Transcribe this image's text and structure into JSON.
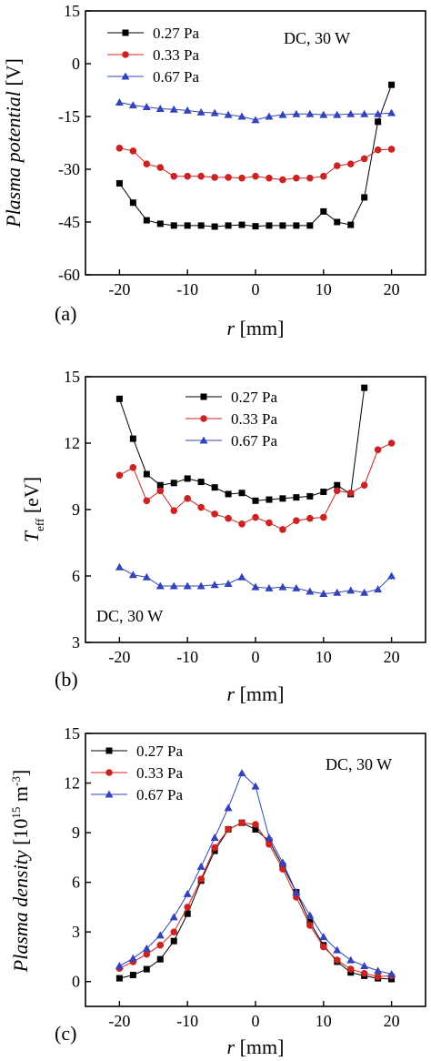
{
  "colors": {
    "s027": "#000000",
    "s033": "#cc2222",
    "s067": "#3344bb",
    "line": "#444444"
  },
  "chart_data": [
    {
      "type": "line",
      "panel_label": "(a)",
      "annotation": "DC, 30 W",
      "annotation_pos": "top-right",
      "ylabel": "Plasma potential [V]",
      "xlabel_var": "r",
      "xlabel_unit": " [mm]",
      "xlim": [
        -25,
        25
      ],
      "ylim": [
        -60,
        15
      ],
      "xticks": [
        -20,
        -10,
        0,
        10,
        20
      ],
      "xtick_labels": [
        "-20",
        "-10",
        "0",
        "10",
        "20"
      ],
      "yticks": [
        -60,
        -45,
        -30,
        -15,
        0,
        15
      ],
      "ytick_labels": [
        "-60",
        "-45",
        "-30",
        "-15",
        "0",
        "15"
      ],
      "legend_pos": "top-left",
      "series": [
        {
          "name": "0.27 Pa",
          "marker": "square",
          "color_key": "s027",
          "x": [
            -20,
            -18,
            -16,
            -14,
            -12,
            -10,
            -8,
            -6,
            -4,
            -2,
            0,
            2,
            4,
            6,
            8,
            10,
            12,
            14,
            16,
            18,
            20
          ],
          "y": [
            -34,
            -39.5,
            -44.5,
            -45.5,
            -46,
            -46,
            -46,
            -46.3,
            -46,
            -45.8,
            -46.2,
            -46,
            -46,
            -46,
            -46,
            -42,
            -45,
            -45.8,
            -38,
            -16.5,
            -6
          ]
        },
        {
          "name": "0.33 Pa",
          "marker": "circle",
          "color_key": "s033",
          "x": [
            -20,
            -18,
            -16,
            -14,
            -12,
            -10,
            -8,
            -6,
            -4,
            -2,
            0,
            2,
            4,
            6,
            8,
            10,
            12,
            14,
            16,
            18,
            20
          ],
          "y": [
            -24,
            -24.8,
            -28.5,
            -29.5,
            -32,
            -32,
            -32,
            -32.3,
            -32.3,
            -32.5,
            -32,
            -32.5,
            -33,
            -32.5,
            -32.5,
            -32,
            -29,
            -28.5,
            -27,
            -24.5,
            -24.3
          ]
        },
        {
          "name": "0.67 Pa",
          "marker": "triangle",
          "color_key": "s067",
          "x": [
            -20,
            -18,
            -16,
            -14,
            -12,
            -10,
            -8,
            -6,
            -4,
            -2,
            0,
            2,
            4,
            6,
            8,
            10,
            12,
            14,
            16,
            18,
            20
          ],
          "y": [
            -11,
            -11.8,
            -12.3,
            -12.8,
            -13,
            -13.3,
            -13.8,
            -14,
            -14.5,
            -15,
            -16,
            -15,
            -14.5,
            -14.3,
            -14.3,
            -14.5,
            -14.5,
            -14.3,
            -14.3,
            -14.3,
            -14
          ]
        }
      ]
    },
    {
      "type": "line",
      "panel_label": "(b)",
      "annotation": "DC, 30 W",
      "annotation_pos": "bottom-left",
      "ylabel_main": "T",
      "ylabel_sub": "eff",
      "ylabel_unit": " [eV]",
      "xlabel_var": "r",
      "xlabel_unit": " [mm]",
      "xlim": [
        -25,
        25
      ],
      "ylim": [
        3,
        15
      ],
      "xticks": [
        -20,
        -10,
        0,
        10,
        20
      ],
      "xtick_labels": [
        "-20",
        "-10",
        "0",
        "10",
        "20"
      ],
      "yticks": [
        3,
        6,
        9,
        12,
        15
      ],
      "ytick_labels": [
        "3",
        "6",
        "9",
        "12",
        "15"
      ],
      "legend_pos": "top-center",
      "series": [
        {
          "name": "0.27 Pa",
          "marker": "square",
          "color_key": "s027",
          "x": [
            -20,
            -18,
            -16,
            -14,
            -12,
            -10,
            -8,
            -6,
            -4,
            -2,
            0,
            2,
            4,
            6,
            8,
            10,
            12,
            14,
            16
          ],
          "y": [
            14,
            12.2,
            10.6,
            10.1,
            10.2,
            10.4,
            10.25,
            10,
            9.7,
            9.75,
            9.4,
            9.45,
            9.5,
            9.55,
            9.6,
            9.8,
            10.1,
            9.7,
            14.5
          ]
        },
        {
          "name": "0.33 Pa",
          "marker": "circle",
          "color_key": "s033",
          "x": [
            -20,
            -18,
            -16,
            -14,
            -12,
            -10,
            -8,
            -6,
            -4,
            -2,
            0,
            2,
            4,
            6,
            8,
            10,
            12,
            14,
            16,
            18,
            20
          ],
          "y": [
            10.55,
            10.9,
            9.4,
            9.85,
            8.95,
            9.5,
            9.1,
            8.8,
            8.6,
            8.35,
            8.65,
            8.4,
            8.1,
            8.5,
            8.6,
            8.65,
            9.85,
            9.75,
            10.1,
            11.7,
            12
          ]
        },
        {
          "name": "0.67 Pa",
          "marker": "triangle",
          "color_key": "s067",
          "x": [
            -20,
            -18,
            -16,
            -14,
            -12,
            -10,
            -8,
            -6,
            -4,
            -2,
            0,
            2,
            4,
            6,
            8,
            10,
            12,
            14,
            16,
            18,
            20
          ],
          "y": [
            6.4,
            6.05,
            5.95,
            5.55,
            5.55,
            5.55,
            5.55,
            5.6,
            5.65,
            5.95,
            5.5,
            5.45,
            5.5,
            5.45,
            5.3,
            5.2,
            5.25,
            5.35,
            5.25,
            5.4,
            6
          ]
        }
      ]
    },
    {
      "type": "line",
      "panel_label": "(c)",
      "annotation": "DC, 30 W",
      "annotation_pos": "top-right",
      "ylabel_main": "Plasma density [10",
      "ylabel_sup1": "15",
      "ylabel_mid": " m",
      "ylabel_sup2": "-3",
      "ylabel_end": "]",
      "xlabel_var": "r",
      "xlabel_unit": " [mm]",
      "xlim": [
        -25,
        25
      ],
      "ylim": [
        -1.5,
        15
      ],
      "xticks": [
        -20,
        -10,
        0,
        10,
        20
      ],
      "xtick_labels": [
        "-20",
        "-10",
        "0",
        "10",
        "20"
      ],
      "yticks": [
        0,
        3,
        6,
        9,
        12,
        15
      ],
      "ytick_labels": [
        "0",
        "3",
        "6",
        "9",
        "12",
        "15"
      ],
      "legend_pos": "top-left",
      "series": [
        {
          "name": "0.27 Pa",
          "marker": "square",
          "color_key": "s027",
          "x": [
            -20,
            -18,
            -16,
            -14,
            -12,
            -10,
            -8,
            -6,
            -4,
            -2,
            0,
            2,
            4,
            6,
            8,
            10,
            12,
            14,
            16,
            18,
            20
          ],
          "y": [
            0.2,
            0.4,
            0.75,
            1.35,
            2.45,
            4.1,
            6.1,
            7.9,
            9.2,
            9.6,
            9.2,
            8.5,
            7.0,
            5.4,
            3.6,
            2.2,
            1.2,
            0.55,
            0.35,
            0.2,
            0.15
          ]
        },
        {
          "name": "0.33 Pa",
          "marker": "circle",
          "color_key": "s033",
          "x": [
            -20,
            -18,
            -16,
            -14,
            -12,
            -10,
            -8,
            -6,
            -4,
            -2,
            0,
            2,
            4,
            6,
            8,
            10,
            12,
            14,
            16,
            18,
            20
          ],
          "y": [
            0.8,
            1.2,
            1.65,
            2.2,
            3.0,
            4.5,
            6.2,
            8.1,
            9.2,
            9.6,
            9.5,
            8.3,
            6.8,
            5.1,
            3.4,
            2.1,
            1.3,
            0.75,
            0.5,
            0.3,
            0.35
          ]
        },
        {
          "name": "0.67 Pa",
          "marker": "triangle",
          "color_key": "s067",
          "x": [
            -20,
            -18,
            -16,
            -14,
            -12,
            -10,
            -8,
            -6,
            -4,
            -2,
            0,
            2,
            4,
            6,
            8,
            10,
            12,
            14,
            16,
            18,
            20
          ],
          "y": [
            0.95,
            1.4,
            2.0,
            2.8,
            3.9,
            5.3,
            6.95,
            8.7,
            10.5,
            12.6,
            11.8,
            8.7,
            7.2,
            5.4,
            4.0,
            2.7,
            1.9,
            1.3,
            0.95,
            0.65,
            0.45
          ]
        }
      ]
    }
  ]
}
